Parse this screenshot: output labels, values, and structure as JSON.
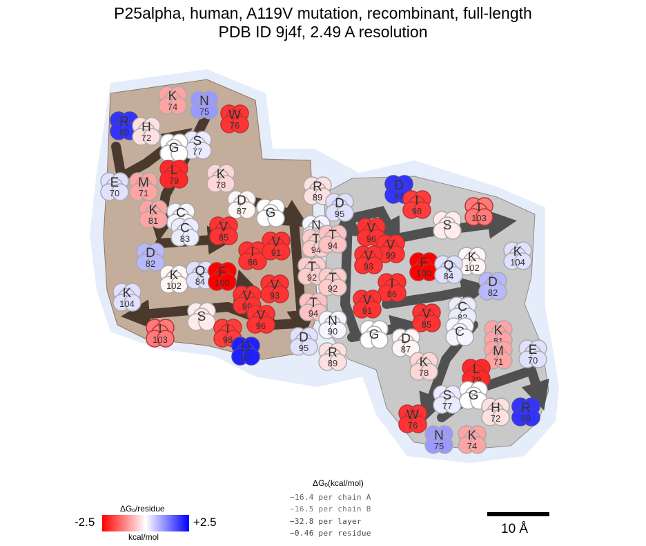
{
  "title": {
    "line1": "P25alpha, human, A119V mutation, recombinant, full-length",
    "line2": "PDB ID 9j4f, 2.49 A resolution"
  },
  "colors": {
    "chainA_fill": "#c4ad9b",
    "chainB_fill": "#c9c9c9",
    "halo": "#e5edfb",
    "arrowA": "#4a3a2e",
    "arrowB": "#505050",
    "negative": "#ff0000",
    "positive": "#0000ff"
  },
  "residues_chain_A": [
    {
      "aa": "R",
      "num": "69",
      "dg": 2.0
    },
    {
      "aa": "H",
      "num": "72",
      "dg": -0.3
    },
    {
      "aa": "K",
      "num": "74",
      "dg": -0.9
    },
    {
      "aa": "N",
      "num": "75",
      "dg": 1.0
    },
    {
      "aa": "W",
      "num": "76",
      "dg": -2.0
    },
    {
      "aa": "S",
      "num": "77",
      "dg": 0.2
    },
    {
      "aa": "G",
      "num": "",
      "dg": 0.0
    },
    {
      "aa": "L",
      "num": "79",
      "dg": -2.1
    },
    {
      "aa": "E",
      "num": "70",
      "dg": 0.3
    },
    {
      "aa": "M",
      "num": "71",
      "dg": -0.9
    },
    {
      "aa": "K",
      "num": "78",
      "dg": -0.4
    },
    {
      "aa": "K",
      "num": "81",
      "dg": -0.9
    },
    {
      "aa": "C",
      "num": "80",
      "dg": 0.1
    },
    {
      "aa": "C",
      "num": "83",
      "dg": 0.2
    },
    {
      "aa": "D",
      "num": "87",
      "dg": -0.1
    },
    {
      "aa": "R",
      "num": "89",
      "dg": -0.3
    },
    {
      "aa": "G",
      "num": "",
      "dg": 0.0
    },
    {
      "aa": "V",
      "num": "85",
      "dg": -2.0
    },
    {
      "aa": "D",
      "num": "82",
      "dg": 0.7
    },
    {
      "aa": "I",
      "num": "86",
      "dg": -2.0
    },
    {
      "aa": "V",
      "num": "91",
      "dg": -2.0
    },
    {
      "aa": "N",
      "num": "90",
      "dg": 0.1
    },
    {
      "aa": "T",
      "num": "94",
      "dg": -0.5
    },
    {
      "aa": "K",
      "num": "102",
      "dg": -0.1
    },
    {
      "aa": "Q",
      "num": "84",
      "dg": 0.3
    },
    {
      "aa": "F",
      "num": "100",
      "dg": -2.5
    },
    {
      "aa": "T",
      "num": "92",
      "dg": -0.5
    },
    {
      "aa": "K",
      "num": "104",
      "dg": 0.3
    },
    {
      "aa": "V",
      "num": "93",
      "dg": -2.0
    },
    {
      "aa": "V",
      "num": "99",
      "dg": -2.0
    },
    {
      "aa": "T",
      "num": "94",
      "dg": -0.6
    },
    {
      "aa": "S",
      "num": "",
      "dg": -0.2
    },
    {
      "aa": "V",
      "num": "96",
      "dg": -2.0
    },
    {
      "aa": "I",
      "num": "103",
      "dg": -1.3
    },
    {
      "aa": "I",
      "num": "98",
      "dg": -1.9
    },
    {
      "aa": "D",
      "num": "95",
      "dg": 0.3
    },
    {
      "aa": "D",
      "num": "97",
      "dg": 2.2
    }
  ],
  "residues_chain_B": [
    {
      "aa": "D",
      "num": "97",
      "dg": 2.0
    },
    {
      "aa": "I",
      "num": "98",
      "dg": -1.9
    },
    {
      "aa": "D",
      "num": "95",
      "dg": 0.3
    },
    {
      "aa": "I",
      "num": "103",
      "dg": -1.3
    },
    {
      "aa": "V",
      "num": "96",
      "dg": -2.0
    },
    {
      "aa": "S",
      "num": "",
      "dg": -0.2
    },
    {
      "aa": "T",
      "num": "94",
      "dg": -0.6
    },
    {
      "aa": "V",
      "num": "99",
      "dg": -2.0
    },
    {
      "aa": "K",
      "num": "104",
      "dg": 0.3
    },
    {
      "aa": "V",
      "num": "93",
      "dg": -2.0
    },
    {
      "aa": "F",
      "num": "100",
      "dg": -2.5
    },
    {
      "aa": "K",
      "num": "102",
      "dg": -0.1
    },
    {
      "aa": "Q",
      "num": "84",
      "dg": 0.3
    },
    {
      "aa": "T",
      "num": "92",
      "dg": -0.5
    },
    {
      "aa": "I",
      "num": "86",
      "dg": -2.0
    },
    {
      "aa": "D",
      "num": "82",
      "dg": 0.7
    },
    {
      "aa": "V",
      "num": "91",
      "dg": -2.0
    },
    {
      "aa": "N",
      "num": "90",
      "dg": 0.1
    },
    {
      "aa": "C",
      "num": "83",
      "dg": 0.2
    },
    {
      "aa": "C",
      "num": "",
      "dg": 0.1
    },
    {
      "aa": "V",
      "num": "85",
      "dg": -2.0
    },
    {
      "aa": "G",
      "num": "",
      "dg": 0.0
    },
    {
      "aa": "D",
      "num": "87",
      "dg": -0.1
    },
    {
      "aa": "K",
      "num": "81",
      "dg": -0.9
    },
    {
      "aa": "E",
      "num": "70",
      "dg": 0.3
    },
    {
      "aa": "R",
      "num": "89",
      "dg": -0.3
    },
    {
      "aa": "K",
      "num": "78",
      "dg": -0.4
    },
    {
      "aa": "M",
      "num": "71",
      "dg": -0.9
    },
    {
      "aa": "L",
      "num": "79",
      "dg": -2.1
    },
    {
      "aa": "S",
      "num": "77",
      "dg": 0.2
    },
    {
      "aa": "G",
      "num": "",
      "dg": 0.0
    },
    {
      "aa": "H",
      "num": "72",
      "dg": -0.3
    },
    {
      "aa": "R",
      "num": "69",
      "dg": 2.0
    },
    {
      "aa": "W",
      "num": "76",
      "dg": -2.0
    },
    {
      "aa": "N",
      "num": "75",
      "dg": 1.0
    },
    {
      "aa": "K",
      "num": "74",
      "dg": -0.9
    }
  ],
  "energy_box": {
    "title": "ΔGₒ(kcal/mol)",
    "rows": [
      "−16.4 per chain A",
      "−16.5 per chain B",
      "−32.8 per layer",
      "−0.46 per residue"
    ]
  },
  "colorbar": {
    "title": "ΔGₒ/residue",
    "min_label": "-2.5",
    "max_label": "+2.5",
    "unit": "kcal/mol",
    "min": -2.5,
    "max": 2.5
  },
  "scale_bar": {
    "label": "10 Å"
  }
}
